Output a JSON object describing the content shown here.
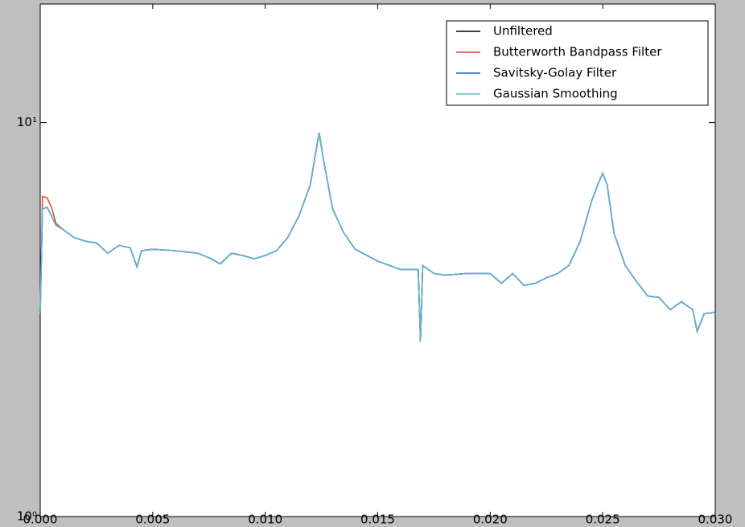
{
  "chart_data": {
    "type": "line",
    "yscale": "log",
    "legend": "upper right",
    "x": [
      0.0,
      0.0001,
      0.0003,
      0.0005,
      0.0007,
      0.001,
      0.0015,
      0.002,
      0.0025,
      0.003,
      0.0035,
      0.004,
      0.0043,
      0.0045,
      0.005,
      0.006,
      0.007,
      0.0075,
      0.008,
      0.0085,
      0.009,
      0.0095,
      0.01,
      0.0105,
      0.011,
      0.0115,
      0.012,
      0.0123,
      0.0124,
      0.0126,
      0.013,
      0.0135,
      0.014,
      0.015,
      0.016,
      0.0168,
      0.0169,
      0.017,
      0.0175,
      0.018,
      0.019,
      0.02,
      0.0205,
      0.021,
      0.0215,
      0.022,
      0.0225,
      0.023,
      0.0235,
      0.024,
      0.0245,
      0.0248,
      0.025,
      0.0252,
      0.0255,
      0.026,
      0.0265,
      0.027,
      0.0275,
      0.028,
      0.0285,
      0.029,
      0.0292,
      0.0295,
      0.03
    ],
    "series": [
      {
        "name": "Unfiltered",
        "color": "#000000",
        "values": [
          3.27,
          6.03,
          6.1,
          5.8,
          5.49,
          5.36,
          5.11,
          5.0,
          4.95,
          4.66,
          4.88,
          4.81,
          4.3,
          4.73,
          4.77,
          4.73,
          4.66,
          4.54,
          4.38,
          4.66,
          4.6,
          4.51,
          4.6,
          4.73,
          5.11,
          5.8,
          6.94,
          8.77,
          9.41,
          7.98,
          6.03,
          5.24,
          4.77,
          4.45,
          4.24,
          4.24,
          2.78,
          4.34,
          4.14,
          4.1,
          4.14,
          4.14,
          3.91,
          4.14,
          3.86,
          3.91,
          4.04,
          4.14,
          4.34,
          5.0,
          6.31,
          7.0,
          7.44,
          6.94,
          5.24,
          4.34,
          3.95,
          3.63,
          3.6,
          3.35,
          3.51,
          3.35,
          2.95,
          3.27,
          3.3
        ]
      },
      {
        "name": "Butterworth Bandpass Filter",
        "color": "#e8452c",
        "values": [
          3.27,
          6.5,
          6.45,
          6.1,
          5.55,
          5.36,
          5.11,
          5.0,
          4.95,
          4.66,
          4.88,
          4.81,
          4.3,
          4.73,
          4.77,
          4.73,
          4.66,
          4.54,
          4.38,
          4.66,
          4.6,
          4.51,
          4.6,
          4.73,
          5.11,
          5.8,
          6.94,
          8.77,
          9.41,
          7.98,
          6.03,
          5.24,
          4.77,
          4.45,
          4.24,
          4.24,
          2.78,
          4.34,
          4.14,
          4.1,
          4.14,
          4.14,
          3.91,
          4.14,
          3.86,
          3.91,
          4.04,
          4.14,
          4.34,
          5.0,
          6.31,
          7.0,
          7.44,
          6.94,
          5.24,
          4.34,
          3.95,
          3.63,
          3.6,
          3.35,
          3.51,
          3.35,
          2.95,
          3.27,
          3.3
        ]
      },
      {
        "name": "Savitsky-Golay Filter",
        "color": "#1f5fd6",
        "values": [
          3.27,
          6.03,
          6.1,
          5.8,
          5.49,
          5.36,
          5.11,
          5.0,
          4.95,
          4.66,
          4.88,
          4.81,
          4.3,
          4.73,
          4.77,
          4.73,
          4.66,
          4.54,
          4.38,
          4.66,
          4.6,
          4.51,
          4.6,
          4.73,
          5.11,
          5.8,
          6.94,
          8.77,
          9.41,
          7.98,
          6.03,
          5.24,
          4.77,
          4.45,
          4.24,
          4.24,
          2.78,
          4.34,
          4.14,
          4.1,
          4.14,
          4.14,
          3.91,
          4.14,
          3.86,
          3.91,
          4.04,
          4.14,
          4.34,
          5.0,
          6.31,
          7.0,
          7.44,
          6.94,
          5.24,
          4.34,
          3.95,
          3.63,
          3.6,
          3.35,
          3.51,
          3.35,
          2.95,
          3.27,
          3.3
        ]
      },
      {
        "name": "Gaussian Smoothing",
        "color": "#5fb7d4",
        "values": [
          3.27,
          6.03,
          6.1,
          5.8,
          5.49,
          5.36,
          5.11,
          5.0,
          4.95,
          4.66,
          4.88,
          4.81,
          4.3,
          4.73,
          4.77,
          4.73,
          4.66,
          4.54,
          4.38,
          4.66,
          4.6,
          4.51,
          4.6,
          4.73,
          5.11,
          5.8,
          6.94,
          8.77,
          9.41,
          7.98,
          6.03,
          5.24,
          4.77,
          4.45,
          4.24,
          4.24,
          2.78,
          4.34,
          4.14,
          4.1,
          4.14,
          4.14,
          3.91,
          4.14,
          3.86,
          3.91,
          4.04,
          4.14,
          4.34,
          5.0,
          6.31,
          7.0,
          7.44,
          6.94,
          5.24,
          4.34,
          3.95,
          3.63,
          3.6,
          3.35,
          3.51,
          3.35,
          2.95,
          3.27,
          3.3
        ]
      }
    ],
    "xlim": [
      0,
      0.03
    ],
    "xticks": [
      {
        "value": 0,
        "label": "0.000"
      },
      {
        "value": 0.005,
        "label": "0.005"
      },
      {
        "value": 0.01,
        "label": "0.010"
      },
      {
        "value": 0.015,
        "label": "0.015"
      },
      {
        "value": 0.02,
        "label": "0.020"
      },
      {
        "value": 0.025,
        "label": "0.025"
      },
      {
        "value": 0.03,
        "label": "0.030"
      }
    ],
    "ylim": [
      1,
      20
    ],
    "yticks": [
      {
        "value": 1,
        "label": "10⁰"
      },
      {
        "value": 10,
        "label": "10¹"
      }
    ]
  }
}
